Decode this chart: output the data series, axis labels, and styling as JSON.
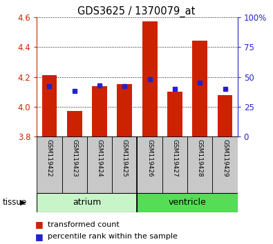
{
  "title": "GDS3625 / 1370079_at",
  "samples": [
    "GSM119422",
    "GSM119423",
    "GSM119424",
    "GSM119425",
    "GSM119426",
    "GSM119427",
    "GSM119428",
    "GSM119429"
  ],
  "red_values": [
    4.21,
    3.97,
    4.14,
    4.15,
    4.57,
    4.1,
    4.44,
    4.08
  ],
  "blue_values": [
    42,
    38,
    43,
    42,
    48,
    40,
    45,
    40
  ],
  "ylim_left": [
    3.8,
    4.6
  ],
  "ylim_right": [
    0,
    100
  ],
  "yticks_left": [
    3.8,
    4.0,
    4.2,
    4.4,
    4.6
  ],
  "yticks_right": [
    0,
    25,
    50,
    75,
    100
  ],
  "ytick_labels_right": [
    "0",
    "25",
    "50",
    "75",
    "100%"
  ],
  "groups": [
    {
      "label": "atrium",
      "indices": [
        0,
        1,
        2,
        3
      ],
      "color": "#c8f5c8"
    },
    {
      "label": "ventricle",
      "indices": [
        4,
        5,
        6,
        7
      ],
      "color": "#55dd55"
    }
  ],
  "group_label": "tissue",
  "bar_bottom": 3.8,
  "red_color": "#cc2200",
  "blue_color": "#2222cc",
  "bg_color": "#ffffff",
  "plot_bg": "#ffffff",
  "grid_color": "#000000",
  "tick_label_bg": "#c8c8c8",
  "legend_red": "transformed count",
  "legend_blue": "percentile rank within the sample",
  "bar_width": 0.6
}
